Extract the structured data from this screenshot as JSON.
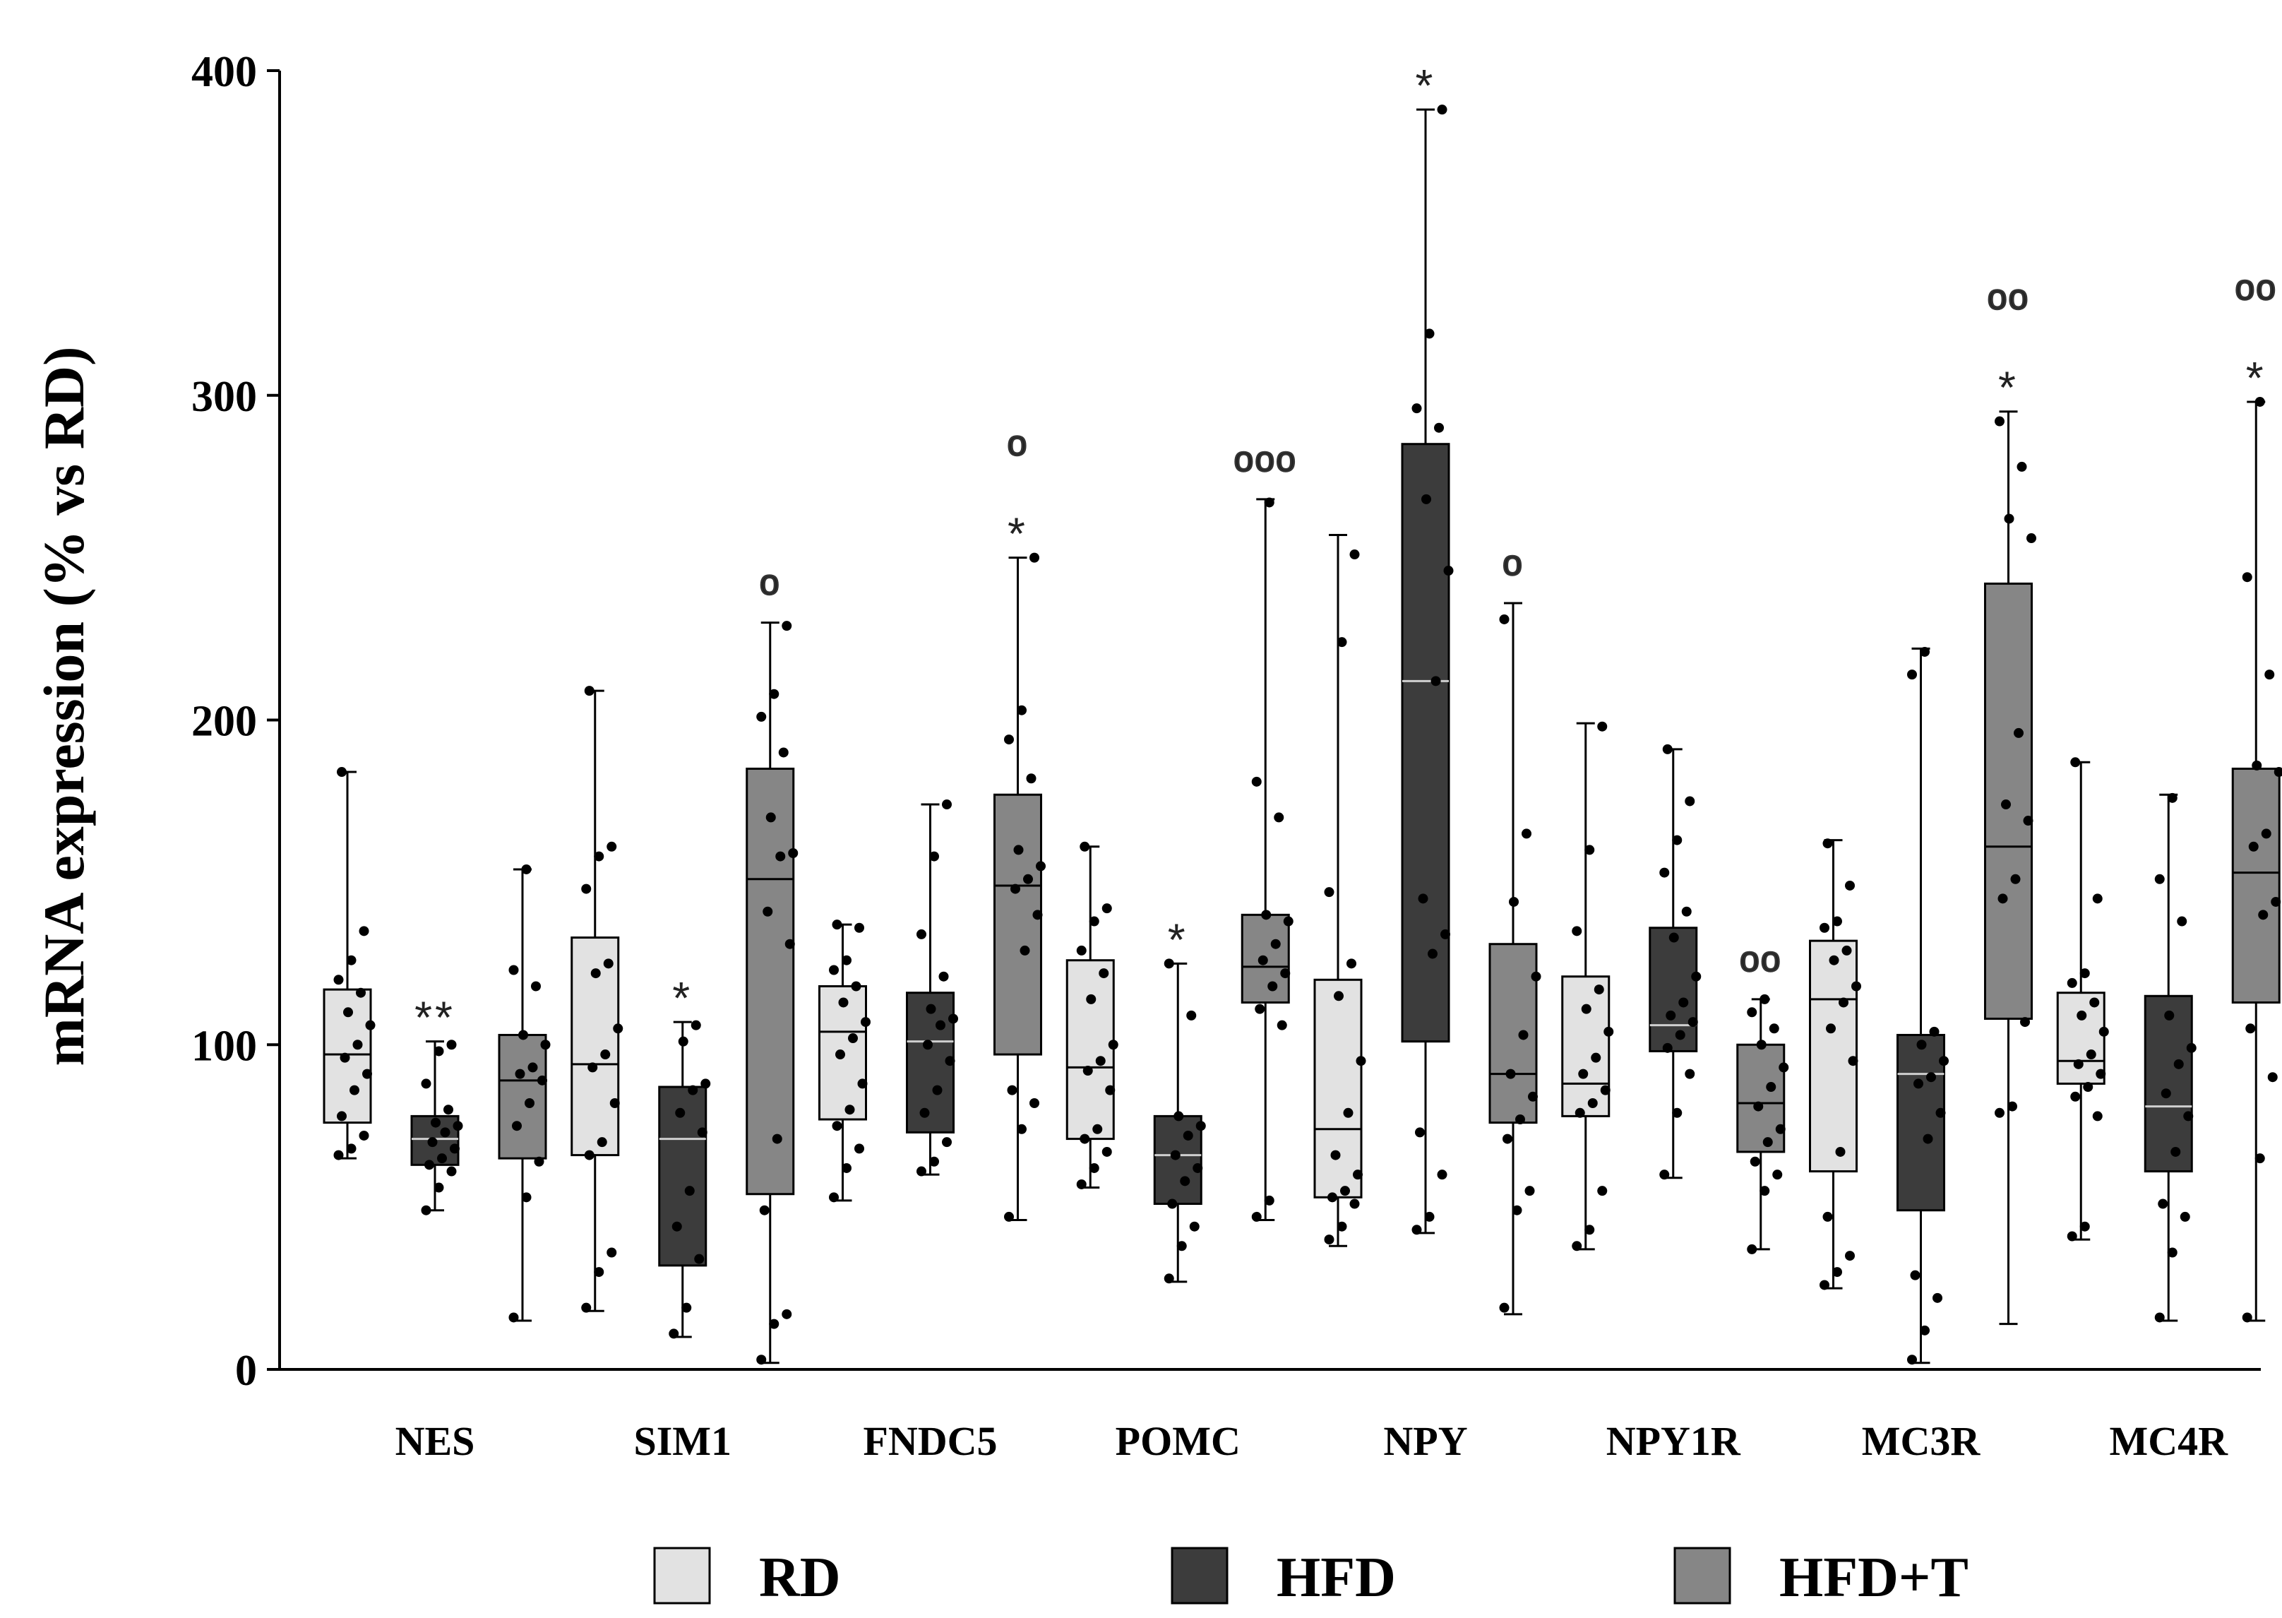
{
  "chart_data": {
    "type": "boxplot",
    "ylabel": "mRNA expression (% vs RD)",
    "xlabel": "",
    "ylim": [
      0,
      400
    ],
    "yticks": [
      "0",
      "100",
      "200",
      "300",
      "400"
    ],
    "categories": [
      "NES",
      "SIM1",
      "FNDC5",
      "POMC",
      "NPY",
      "NPY1R",
      "MC3R",
      "MC4R"
    ],
    "legend_position": "bottom",
    "series": [
      {
        "name": "RD",
        "color": "#e2e2e2",
        "boxes": [
          {
            "min": 65,
            "q1": 76,
            "median": 97,
            "q3": 117,
            "max": 184,
            "points": [
              66,
              68,
              72,
              78,
              86,
              91,
              96,
              100,
              106,
              110,
              116,
              120,
              126,
              135,
              184
            ]
          },
          {
            "min": 18,
            "q1": 66,
            "median": 94,
            "q3": 133,
            "max": 209,
            "points": [
              19,
              30,
              36,
              66,
              70,
              82,
              93,
              97,
              105,
              122,
              125,
              148,
              158,
              161,
              209
            ]
          },
          {
            "min": 52,
            "q1": 77,
            "median": 104,
            "q3": 118,
            "max": 137,
            "points": [
              53,
              62,
              68,
              75,
              80,
              88,
              97,
              102,
              107,
              113,
              118,
              123,
              126,
              136,
              137
            ]
          },
          {
            "min": 56,
            "q1": 71,
            "median": 93,
            "q3": 126,
            "max": 161,
            "points": [
              57,
              62,
              67,
              71,
              74,
              86,
              92,
              95,
              100,
              114,
              122,
              129,
              138,
              142,
              161
            ]
          },
          {
            "min": 38,
            "q1": 53,
            "median": 74,
            "q3": 120,
            "max": 257,
            "points": [
              40,
              44,
              51,
              53,
              55,
              60,
              66,
              79,
              95,
              115,
              125,
              147,
              224,
              251
            ]
          },
          {
            "min": 37,
            "q1": 78,
            "median": 88,
            "q3": 121,
            "max": 199,
            "points": [
              38,
              43,
              55,
              79,
              82,
              86,
              91,
              96,
              104,
              111,
              117,
              135,
              160,
              198
            ]
          },
          {
            "min": 25,
            "q1": 61,
            "median": 114,
            "q3": 132,
            "max": 163,
            "points": [
              26,
              30,
              35,
              47,
              67,
              95,
              105,
              113,
              118,
              126,
              129,
              136,
              138,
              149,
              162
            ]
          },
          {
            "min": 40,
            "q1": 88,
            "median": 95,
            "q3": 116,
            "max": 187,
            "points": [
              41,
              44,
              78,
              84,
              87,
              91,
              94,
              97,
              104,
              109,
              113,
              119,
              122,
              145,
              187
            ]
          }
        ]
      },
      {
        "name": "HFD",
        "color": "#3c3c3c",
        "boxes": [
          {
            "min": 49,
            "q1": 63,
            "median": 71,
            "q3": 78,
            "max": 101,
            "points": [
              49,
              56,
              61,
              63,
              65,
              68,
              70,
              73,
              75,
              76,
              80,
              88,
              98,
              100
            ]
          },
          {
            "min": 10,
            "q1": 32,
            "median": 71,
            "q3": 87,
            "max": 107,
            "points": [
              11,
              19,
              34,
              44,
              55,
              73,
              79,
              86,
              88,
              101,
              106
            ]
          },
          {
            "min": 60,
            "q1": 73,
            "median": 101,
            "q3": 116,
            "max": 174,
            "points": [
              61,
              64,
              70,
              79,
              86,
              95,
              100,
              106,
              108,
              111,
              121,
              134,
              158,
              174
            ]
          },
          {
            "min": 27,
            "q1": 51,
            "median": 66,
            "q3": 78,
            "max": 125,
            "points": [
              28,
              38,
              44,
              51,
              58,
              62,
              66,
              72,
              75,
              78,
              109,
              125
            ]
          },
          {
            "min": 42,
            "q1": 101,
            "median": 212,
            "q3": 285,
            "max": 388,
            "points": [
              43,
              47,
              60,
              73,
              128,
              134,
              145,
              212,
              246,
              268,
              290,
              296,
              319,
              388
            ]
          },
          {
            "min": 59,
            "q1": 98,
            "median": 106,
            "q3": 136,
            "max": 191,
            "points": [
              60,
              79,
              91,
              99,
              103,
              107,
              109,
              113,
              121,
              133,
              141,
              153,
              163,
              175,
              191
            ]
          },
          {
            "min": 2,
            "q1": 49,
            "median": 91,
            "q3": 103,
            "max": 222,
            "points": [
              3,
              12,
              22,
              29,
              71,
              79,
              88,
              90,
              95,
              100,
              104,
              214,
              221
            ]
          },
          {
            "min": 15,
            "q1": 61,
            "median": 81,
            "q3": 115,
            "max": 177,
            "points": [
              16,
              36,
              47,
              51,
              67,
              78,
              85,
              94,
              99,
              109,
              138,
              151,
              176
            ]
          }
        ]
      },
      {
        "name": "HFD+T",
        "color": "#868686",
        "boxes": [
          {
            "min": 15,
            "q1": 65,
            "median": 89,
            "q3": 103,
            "max": 154,
            "points": [
              16,
              53,
              64,
              75,
              82,
              89,
              91,
              93,
              100,
              103,
              118,
              123,
              154
            ]
          },
          {
            "min": 2,
            "q1": 54,
            "median": 151,
            "q3": 185,
            "max": 230,
            "points": [
              3,
              14,
              17,
              49,
              71,
              131,
              141,
              158,
              159,
              170,
              190,
              201,
              208,
              229
            ]
          },
          {
            "min": 46,
            "q1": 97,
            "median": 149,
            "q3": 177,
            "max": 250,
            "points": [
              47,
              74,
              82,
              86,
              129,
              140,
              148,
              151,
              155,
              160,
              182,
              194,
              203,
              250
            ]
          },
          {
            "min": 46,
            "q1": 113,
            "median": 124,
            "q3": 140,
            "max": 268,
            "points": [
              47,
              52,
              106,
              111,
              118,
              122,
              126,
              131,
              138,
              140,
              170,
              181,
              267
            ]
          },
          {
            "min": 17,
            "q1": 76,
            "median": 91,
            "q3": 131,
            "max": 236,
            "points": [
              19,
              49,
              55,
              71,
              77,
              84,
              91,
              103,
              121,
              144,
              165,
              231
            ]
          },
          {
            "min": 37,
            "q1": 67,
            "median": 82,
            "q3": 100,
            "max": 114,
            "points": [
              37,
              55,
              60,
              64,
              70,
              74,
              81,
              87,
              93,
              100,
              105,
              110,
              114
            ]
          },
          {
            "min": 14,
            "q1": 108,
            "median": 161,
            "q3": 242,
            "max": 295,
            "points": [
              79,
              81,
              107,
              145,
              151,
              169,
              174,
              196,
              256,
              262,
              278,
              292
            ]
          },
          {
            "min": 15,
            "q1": 113,
            "median": 153,
            "q3": 185,
            "max": 298,
            "points": [
              16,
              65,
              90,
              105,
              140,
              144,
              161,
              165,
              184,
              186,
              214,
              244,
              298
            ]
          }
        ]
      }
    ],
    "annotations": [
      {
        "category": "NES",
        "group": "HFD",
        "text": "**"
      },
      {
        "category": "SIM1",
        "group": "HFD",
        "text": "*"
      },
      {
        "category": "SIM1",
        "group": "HFD+T",
        "text": "o"
      },
      {
        "category": "FNDC5",
        "group": "HFD+T",
        "text": "*"
      },
      {
        "category": "FNDC5",
        "group": "HFD+T",
        "text": "o"
      },
      {
        "category": "POMC",
        "group": "HFD",
        "text": "*"
      },
      {
        "category": "POMC",
        "group": "HFD+T",
        "text": "ooo"
      },
      {
        "category": "NPY",
        "group": "HFD",
        "text": "*"
      },
      {
        "category": "NPY",
        "group": "HFD+T",
        "text": "o"
      },
      {
        "category": "NPY1R",
        "group": "HFD+T",
        "text": "oo"
      },
      {
        "category": "MC3R",
        "group": "HFD+T",
        "text": "*"
      },
      {
        "category": "MC3R",
        "group": "HFD+T",
        "text": "oo"
      },
      {
        "category": "MC4R",
        "group": "HFD+T",
        "text": "*"
      },
      {
        "category": "MC4R",
        "group": "HFD+T",
        "text": "oo"
      }
    ]
  }
}
